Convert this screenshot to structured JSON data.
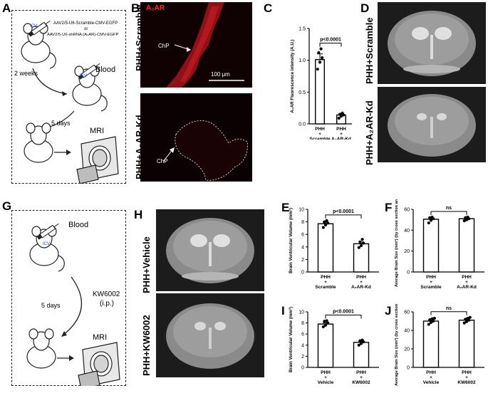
{
  "panel_letters": {
    "A": "A",
    "B": "B",
    "C": "C",
    "D": "D",
    "E": "E",
    "F": "F",
    "G": "G",
    "H": "H",
    "I": "I",
    "J": "J"
  },
  "panelA": {
    "vector1": "AAV2/5-U6-Scramble-CMV-EGFP",
    "or": "or",
    "vector2": "AAV2/5-U6-shRNA (A₂AR)-CMV-EGFP",
    "icv": "ICV",
    "interval1": "2 weeks",
    "blood": "Blood",
    "interval2": "5 days",
    "mri": "MRI"
  },
  "panelB": {
    "stain": "A₂AR",
    "row1": "PHH+Scramble",
    "row2": "PHH+A₂AR-Kd",
    "chp": "ChP",
    "scale": "100 μm"
  },
  "panelD": {
    "row1": "PHH+Scramble",
    "row2": "PHH+A₂AR-Kd"
  },
  "panelG": {
    "blood": "Blood",
    "icv": "ICV",
    "drug": "KW6002",
    "route": "(i.p.)",
    "interval": "5 days",
    "mri": "MRI"
  },
  "panelH": {
    "row1": "PHH+Vehicle",
    "row2": "PHH+KW6002"
  },
  "chart_data": [
    {
      "panel": "C",
      "type": "bar",
      "ylabel": "A₂AR Fluorescence intensity (A.U.)",
      "ylim": [
        0,
        1.5
      ],
      "yticks": [
        "0.0",
        "0.5",
        "1.0",
        "1.5"
      ],
      "categories": [
        [
          "PHH",
          "+",
          "Scramble"
        ],
        [
          "PHH",
          "+",
          "A₂AR-Kd"
        ]
      ],
      "values": [
        1.01,
        0.14
      ],
      "points": [
        [
          0.86,
          0.97,
          1.04,
          1.12,
          1.18
        ],
        [
          0.09,
          0.12,
          0.14,
          0.15,
          0.17
        ]
      ],
      "errors": [
        0.09,
        0.02
      ],
      "annotation": "p<0.0001"
    },
    {
      "panel": "E",
      "type": "bar",
      "ylabel": "Brain Ventricular Volume (mm³)",
      "ylim": [
        0,
        10
      ],
      "yticks": [
        "0",
        "2",
        "4",
        "6",
        "8",
        "10"
      ],
      "categories": [
        [
          "PHH",
          "+",
          "Scramble"
        ],
        [
          "PHH",
          "+",
          "A₂AR-Kd"
        ]
      ],
      "values": [
        7.7,
        4.5
      ],
      "points": [
        [
          7.1,
          7.5,
          7.8,
          8.0,
          8.2
        ],
        [
          3.9,
          4.2,
          4.6,
          4.8,
          5.2
        ]
      ],
      "errors": [
        0.25,
        0.3
      ],
      "annotation": "p<0.0001"
    },
    {
      "panel": "F",
      "type": "bar",
      "ylabel": "Average Brain Size (mm²) (by cross section area)",
      "ylim": [
        0,
        60
      ],
      "yticks": [
        "0",
        "20",
        "40",
        "60"
      ],
      "categories": [
        [
          "PHH",
          "+",
          "Scramble"
        ],
        [
          "PHH",
          "+",
          "A₂AR-Kd"
        ]
      ],
      "values": [
        50.5,
        51
      ],
      "points": [
        [
          47,
          49.5,
          51,
          52,
          52.5
        ],
        [
          49,
          50,
          51,
          52,
          52.5
        ]
      ],
      "errors": [
        1.2,
        0.8
      ],
      "annotation": "ns"
    },
    {
      "panel": "I",
      "type": "bar",
      "ylabel": "Brain Ventricular Volume (mm³)",
      "ylim": [
        0,
        10
      ],
      "yticks": [
        "0",
        "2",
        "4",
        "6",
        "8",
        "10"
      ],
      "categories": [
        [
          "PHH",
          "+",
          "Vehicle"
        ],
        [
          "PHH",
          "+",
          "KW6002"
        ]
      ],
      "values": [
        7.8,
        4.5
      ],
      "points": [
        [
          7.3,
          7.6,
          8.0,
          8.3,
          8.4
        ],
        [
          4.0,
          4.3,
          4.6,
          4.8,
          4.9
        ]
      ],
      "errors": [
        0.22,
        0.2
      ],
      "annotation": "p<0.0001"
    },
    {
      "panel": "J",
      "type": "bar",
      "ylabel": "Average Brain Size (mm²) (by cross section area)",
      "ylim": [
        0,
        60
      ],
      "yticks": [
        "0",
        "20",
        "40",
        "60"
      ],
      "categories": [
        [
          "PHH",
          "+",
          "Vehicle"
        ],
        [
          "PHH",
          "+",
          "KW6002"
        ]
      ],
      "values": [
        50,
        51
      ],
      "points": [
        [
          46.5,
          48.5,
          50,
          51.5,
          52.5,
          53
        ],
        [
          48,
          49.5,
          51,
          52,
          53,
          54
        ]
      ],
      "errors": [
        1.0,
        0.9
      ],
      "annotation": "ns"
    }
  ]
}
